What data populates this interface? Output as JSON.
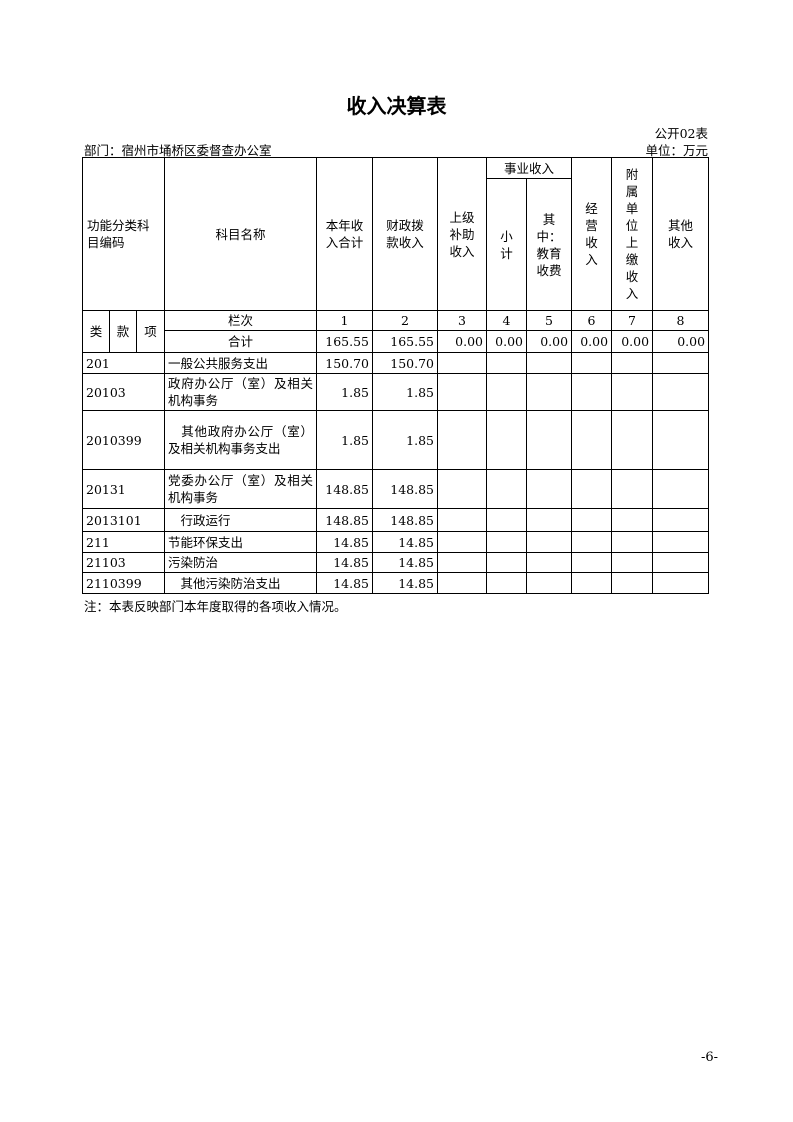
{
  "title": "收入决算表",
  "table_no": "公开02表",
  "unit": "单位：万元",
  "department": "部门：宿州市埇桥区委督查办公室",
  "headers": {
    "code": "功能分类科目编码",
    "name": "科目名称",
    "c1": "本年收入合计",
    "c2": "财政拨款收入",
    "c3": "上级补助收入",
    "shiye": "事业收入",
    "c4": "小计",
    "c5": "其中：教育收费",
    "c6": "经营收入",
    "c7": "附属单位上缴收入",
    "c8": "其他收入",
    "lei": "类",
    "kuan": "款",
    "xiang": "项",
    "lanci": "栏次",
    "n": [
      "1",
      "2",
      "3",
      "4",
      "5",
      "6",
      "7",
      "8"
    ]
  },
  "total": {
    "label": "合计",
    "values": [
      "165.55",
      "165.55",
      "0.00",
      "0.00",
      "0.00",
      "0.00",
      "0.00",
      "0.00"
    ]
  },
  "rows": [
    {
      "code": "201",
      "name": "一般公共服务支出",
      "c1": "150.70",
      "c2": "150.70"
    },
    {
      "code": "20103",
      "name": "政府办公厅（室）及相关机构事务",
      "c1": "1.85",
      "c2": "1.85"
    },
    {
      "code": "2010399",
      "name": "　其他政府办公厅（室）及相关机构事务支出",
      "c1": "1.85",
      "c2": "1.85"
    },
    {
      "code": "20131",
      "name": "党委办公厅（室）及相关机构事务",
      "c1": "148.85",
      "c2": "148.85"
    },
    {
      "code": "2013101",
      "name": "　行政运行",
      "c1": "148.85",
      "c2": "148.85"
    },
    {
      "code": "211",
      "name": "节能环保支出",
      "c1": "14.85",
      "c2": "14.85"
    },
    {
      "code": "21103",
      "name": "污染防治",
      "c1": "14.85",
      "c2": "14.85"
    },
    {
      "code": "2110399",
      "name": "　其他污染防治支出",
      "c1": "14.85",
      "c2": "14.85"
    }
  ],
  "note": "注：本表反映部门本年度取得的各项收入情况。",
  "page_number": "-6-"
}
